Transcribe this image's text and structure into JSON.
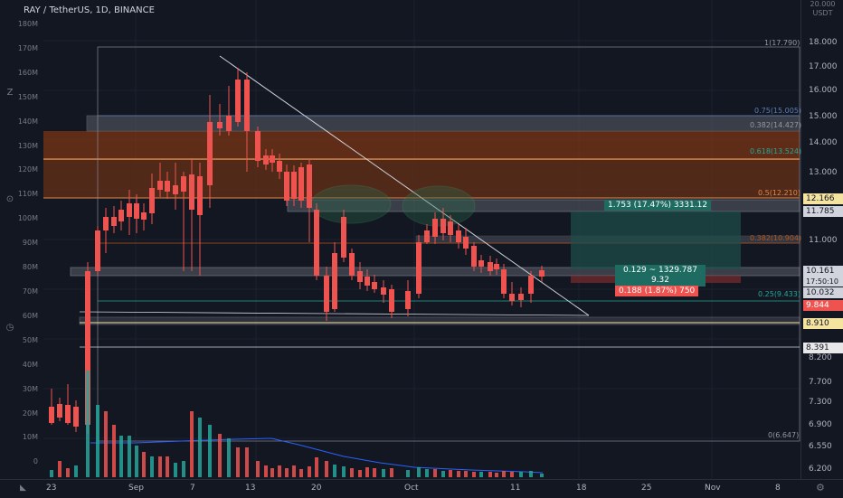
{
  "header": {
    "symbol": "RAY / TetherUS, 1D, BINANCE",
    "currency_top": "20.000",
    "currency_unit": "USDT"
  },
  "price_axis": [
    "18.000",
    "17.000",
    "16.000",
    "15.000",
    "14.000",
    "13.000",
    "12.000",
    "11.000",
    "10.000",
    "9.000",
    "8.200",
    "7.700",
    "7.300",
    "6.900",
    "6.550",
    "6.200"
  ],
  "volume_axis": [
    "180M",
    "170M",
    "160M",
    "150M",
    "140M",
    "130M",
    "120M",
    "110M",
    "100M",
    "90M",
    "80M",
    "70M",
    "60M",
    "50M",
    "40M",
    "30M",
    "20M",
    "10M",
    "0"
  ],
  "date_axis": [
    "23",
    "Sep",
    "7",
    "13",
    "20",
    "Oct",
    "11",
    "18",
    "25",
    "Nov",
    "8"
  ],
  "fib_labels": {
    "f1": "1(17.790)",
    "f075": "0.75(15.005)",
    "f0382": "0.382(14.427)",
    "f0618": "0.618(13.524)",
    "f05": "0.5(12.210)",
    "f0382b": "0.382(10.904)",
    "f025": "0.25(9.433)",
    "f0": "0(6.647)"
  },
  "price_tags": {
    "p12166": "12.166",
    "p11785": "11.785",
    "p10161": "10.161",
    "p_timer": "17:50:10",
    "p10032": "10.032",
    "p9844": "9.844",
    "p8910": "8.910",
    "p8391": "8.391"
  },
  "trade_box": {
    "target_label": "1.753 (17.47%) 3331.12",
    "mid_label_1": "0.129 ~ 1329.787",
    "mid_label_2": "9.32",
    "stop_label": "0.188 (1.87%) 750"
  },
  "colors": {
    "up": "#26a69a",
    "down": "#ef5350",
    "zone_orange": "#b4541e",
    "accent_blue": "#2962ff"
  },
  "icons": {
    "left_bottom": "tradingview-logo-icon",
    "right_bottom": "settings-gear-icon"
  }
}
